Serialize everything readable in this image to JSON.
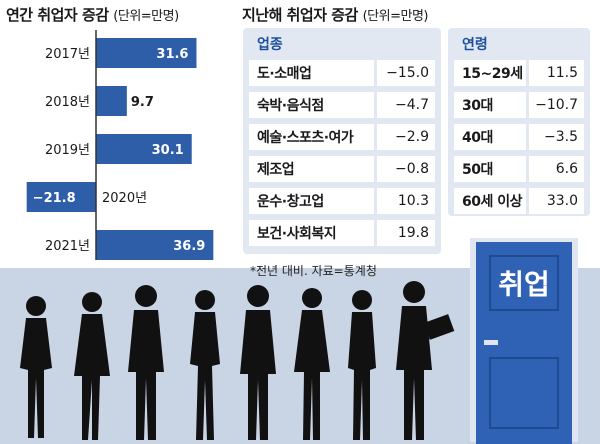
{
  "left_section": {
    "title": "연간 취업자 증감",
    "unit": "(단위=만명)"
  },
  "chart_data": {
    "type": "bar",
    "orientation": "horizontal",
    "title": "연간 취업자 증감",
    "unit": "단위=만명",
    "categories": [
      "2017년",
      "2018년",
      "2019년",
      "2020년",
      "2021년"
    ],
    "values": [
      31.6,
      9.7,
      30.1,
      -21.8,
      36.9
    ],
    "value_labels": [
      "31.6",
      "9.7",
      "30.1",
      "−21.8",
      "36.9"
    ],
    "bar_color": "#2e5ea8",
    "zero_line_color": "#333333"
  },
  "right_section": {
    "title": "지난해 취업자 증감",
    "unit": "(단위=만명)",
    "industry": {
      "heading": "업종",
      "rows": [
        {
          "label": "도·소매업",
          "value": "−15.0"
        },
        {
          "label": "숙박·음식점",
          "value": "−4.7"
        },
        {
          "label": "예술·스포츠·여가",
          "value": "−2.9"
        },
        {
          "label": "제조업",
          "value": "−0.8"
        },
        {
          "label": "운수·창고업",
          "value": "10.3"
        },
        {
          "label": "보건·사회복지",
          "value": "19.8"
        }
      ]
    },
    "age": {
      "heading": "연령",
      "rows": [
        {
          "label": "15~29세",
          "value": "11.5"
        },
        {
          "label": "30대",
          "value": "−10.7"
        },
        {
          "label": "40대",
          "value": "−3.5"
        },
        {
          "label": "50대",
          "value": "6.6"
        },
        {
          "label": "60세 이상",
          "value": "33.0"
        }
      ]
    },
    "footnote": "*전년 대비. 자료=통계청"
  },
  "illustration": {
    "door_sign": "취업",
    "door_color": "#2f62b5",
    "background_color": "#c9d4e4",
    "accent_color": "#1f4f9c"
  }
}
